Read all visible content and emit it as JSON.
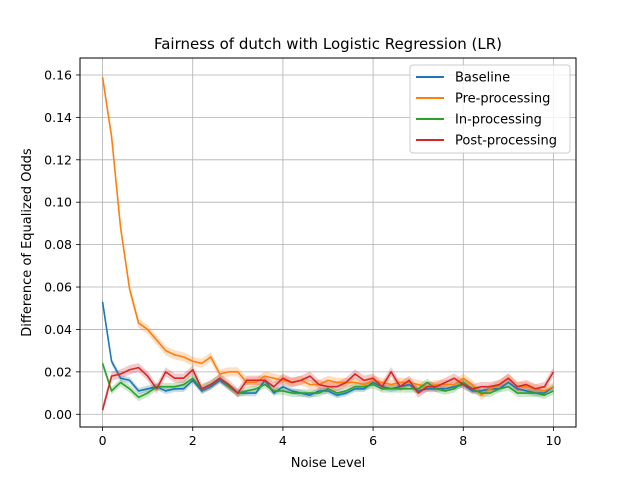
{
  "chart_data": {
    "type": "line",
    "title": "Fairness of dutch with Logistic Regression (LR)",
    "xlabel": "Noise Level",
    "ylabel": "Difference of Equalized Odds",
    "xlim": [
      -0.5,
      10.5
    ],
    "ylim": [
      -0.006,
      0.168
    ],
    "x_ticks": [
      0,
      2,
      4,
      6,
      8,
      10
    ],
    "y_ticks": [
      0.0,
      0.02,
      0.04,
      0.06,
      0.08,
      0.1,
      0.12,
      0.14,
      0.16
    ],
    "x_tick_labels": [
      "0",
      "2",
      "4",
      "6",
      "8",
      "10"
    ],
    "y_tick_labels": [
      "0.00",
      "0.02",
      "0.04",
      "0.06",
      "0.08",
      "0.10",
      "0.12",
      "0.14",
      "0.16"
    ],
    "grid": true,
    "legend_position": "top-right",
    "x": [
      0,
      0.2,
      0.4,
      0.6,
      0.8,
      1.0,
      1.2,
      1.4,
      1.6,
      1.8,
      2.0,
      2.2,
      2.4,
      2.6,
      2.8,
      3.0,
      3.2,
      3.4,
      3.6,
      3.8,
      4.0,
      4.2,
      4.4,
      4.6,
      4.8,
      5.0,
      5.2,
      5.4,
      5.6,
      5.8,
      6.0,
      6.2,
      6.4,
      6.6,
      6.8,
      7.0,
      7.2,
      7.4,
      7.6,
      7.8,
      8.0,
      8.2,
      8.4,
      8.6,
      8.8,
      9.0,
      9.2,
      9.4,
      9.6,
      9.8,
      10.0
    ],
    "series": [
      {
        "name": "Baseline",
        "color": "#1f77b4",
        "band": 0.0015,
        "values": [
          0.053,
          0.025,
          0.017,
          0.016,
          0.011,
          0.012,
          0.013,
          0.011,
          0.012,
          0.012,
          0.016,
          0.011,
          0.013,
          0.016,
          0.013,
          0.01,
          0.01,
          0.01,
          0.016,
          0.01,
          0.013,
          0.011,
          0.01,
          0.009,
          0.011,
          0.011,
          0.009,
          0.01,
          0.012,
          0.012,
          0.015,
          0.013,
          0.012,
          0.013,
          0.014,
          0.011,
          0.012,
          0.012,
          0.012,
          0.013,
          0.014,
          0.011,
          0.011,
          0.012,
          0.012,
          0.015,
          0.012,
          0.011,
          0.01,
          0.01,
          0.013
        ]
      },
      {
        "name": "Pre-processing",
        "color": "#ff7f0e",
        "band": 0.0022,
        "values": [
          0.159,
          0.131,
          0.088,
          0.059,
          0.043,
          0.04,
          0.035,
          0.03,
          0.028,
          0.027,
          0.025,
          0.024,
          0.027,
          0.019,
          0.02,
          0.02,
          0.015,
          0.015,
          0.018,
          0.017,
          0.016,
          0.015,
          0.016,
          0.014,
          0.014,
          0.016,
          0.015,
          0.015,
          0.015,
          0.014,
          0.016,
          0.015,
          0.014,
          0.015,
          0.015,
          0.014,
          0.013,
          0.014,
          0.014,
          0.014,
          0.017,
          0.014,
          0.009,
          0.012,
          0.014,
          0.017,
          0.013,
          0.013,
          0.012,
          0.011,
          0.013
        ]
      },
      {
        "name": "In-processing",
        "color": "#2ca02c",
        "band": 0.0018,
        "values": [
          0.024,
          0.011,
          0.015,
          0.012,
          0.008,
          0.01,
          0.013,
          0.013,
          0.013,
          0.014,
          0.017,
          0.012,
          0.014,
          0.017,
          0.013,
          0.01,
          0.011,
          0.012,
          0.014,
          0.011,
          0.011,
          0.01,
          0.01,
          0.01,
          0.01,
          0.012,
          0.01,
          0.011,
          0.013,
          0.013,
          0.014,
          0.012,
          0.012,
          0.012,
          0.012,
          0.012,
          0.015,
          0.012,
          0.011,
          0.012,
          0.015,
          0.012,
          0.01,
          0.01,
          0.012,
          0.013,
          0.01,
          0.01,
          0.01,
          0.009,
          0.011
        ]
      },
      {
        "name": "Post-processing",
        "color": "#d62728",
        "band": 0.0022,
        "values": [
          0.002,
          0.018,
          0.019,
          0.021,
          0.022,
          0.018,
          0.012,
          0.02,
          0.017,
          0.017,
          0.021,
          0.012,
          0.014,
          0.017,
          0.014,
          0.01,
          0.016,
          0.016,
          0.016,
          0.013,
          0.017,
          0.015,
          0.016,
          0.018,
          0.014,
          0.013,
          0.013,
          0.015,
          0.019,
          0.016,
          0.017,
          0.013,
          0.02,
          0.013,
          0.016,
          0.01,
          0.013,
          0.013,
          0.015,
          0.017,
          0.014,
          0.012,
          0.013,
          0.013,
          0.014,
          0.017,
          0.013,
          0.014,
          0.012,
          0.013,
          0.02
        ]
      }
    ]
  }
}
